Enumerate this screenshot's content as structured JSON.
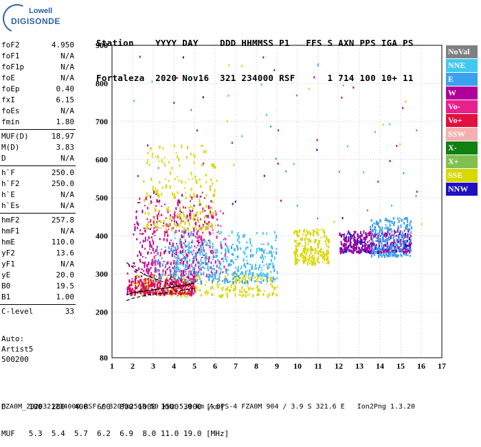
{
  "logo": {
    "brand": "Lowell",
    "product": "DIGISONDE"
  },
  "header": {
    "line1": "Station    YYYY DAY    DDD HHMMSS P1   FFS S AXN PPS IGA PS",
    "line2": "Fortaleza  2020 Nov16  321 234000 RSF      1 714 100 10+ 11"
  },
  "params": [
    [
      {
        "k": "foF2",
        "v": "4.950"
      },
      {
        "k": "foF1",
        "v": "N/A"
      },
      {
        "k": "foF1p",
        "v": "N/A"
      },
      {
        "k": "foE",
        "v": "N/A"
      },
      {
        "k": "foEp",
        "v": "0.40"
      },
      {
        "k": "fxI",
        "v": "6.15"
      },
      {
        "k": "foEs",
        "v": "N/A"
      },
      {
        "k": "fmin",
        "v": "1.80"
      }
    ],
    [
      {
        "k": "MUF(D)",
        "v": "18.97"
      },
      {
        "k": "M(D)",
        "v": "3.83"
      },
      {
        "k": "D",
        "v": "N/A"
      }
    ],
    [
      {
        "k": "h`F",
        "v": "250.0"
      },
      {
        "k": "h`F2",
        "v": "250.0"
      },
      {
        "k": "h`E",
        "v": "N/A"
      },
      {
        "k": "h`Es",
        "v": "N/A"
      }
    ],
    [
      {
        "k": "hmF2",
        "v": "257.8"
      },
      {
        "k": "hmF1",
        "v": "N/A"
      },
      {
        "k": "hmE",
        "v": "110.0"
      },
      {
        "k": "yF2",
        "v": "13.6"
      },
      {
        "k": "yF1",
        "v": "N/A"
      },
      {
        "k": "yE",
        "v": "20.0"
      },
      {
        "k": "B0",
        "v": "19.5"
      },
      {
        "k": "B1",
        "v": "1.00"
      }
    ],
    [
      {
        "k": "C-level",
        "v": "33"
      }
    ]
  ],
  "auto": {
    "l1": "Auto:",
    "l2": "Artist5",
    "l3": "500200"
  },
  "legend": [
    {
      "label": "NoVal",
      "color": "#808080"
    },
    {
      "label": "NNE",
      "color": "#40c8f0"
    },
    {
      "label": "E",
      "color": "#3aa0ef"
    },
    {
      "label": "W",
      "color": "#b0009a"
    },
    {
      "label": "Vo-",
      "color": "#e8208c"
    },
    {
      "label": "Vo+",
      "color": "#e01040"
    },
    {
      "label": "SSW",
      "color": "#f4b0b0"
    },
    {
      "label": "X-",
      "color": "#108010"
    },
    {
      "label": "X+",
      "color": "#80c050"
    },
    {
      "label": "SSE",
      "color": "#d8d800"
    },
    {
      "label": "NNW",
      "color": "#2010c0"
    }
  ],
  "dtable": {
    "line1": "D     100  200  400  600  800 1000 1500 3000 [km]",
    "line2": "MUF   5.3  5.4  5.7  6.2  6.9  8.0 11.0 19.0 [MHz]"
  },
  "footer": "FZA0M_2020321234000.RSF / 320fx256h 50 kHz 5.0 km / DPS-4 FZA0M 904 / 3.9 S 321.6 E   Ion2Png 1.3.20",
  "chart_data": {
    "type": "scatter",
    "title": "",
    "xlabel": "",
    "ylabel": "",
    "xlim": [
      1,
      17
    ],
    "ylim": [
      80,
      900
    ],
    "x_ticks": [
      1,
      2,
      3,
      4,
      5,
      6,
      7,
      8,
      9,
      10,
      11,
      12,
      13,
      14,
      15,
      16,
      17
    ],
    "y_ticks": [
      80,
      200,
      300,
      400,
      500,
      600,
      700,
      800,
      900
    ],
    "grid": true,
    "legend_position": "right",
    "clusters": [
      {
        "x": [
          1.7,
          5.0
        ],
        "y": [
          250,
          330
        ],
        "color": "#b0009a"
      },
      {
        "x": [
          2.0,
          6.0
        ],
        "y": [
          330,
          520
        ],
        "color": "#b0009a"
      },
      {
        "x": [
          2.5,
          6.5
        ],
        "y": [
          300,
          480
        ],
        "color": "#e8208c"
      },
      {
        "x": [
          2.0,
          9.0
        ],
        "y": [
          245,
          300
        ],
        "color": "#d8d800"
      },
      {
        "x": [
          3.0,
          9.0
        ],
        "y": [
          280,
          380
        ],
        "color": "#3aa0ef"
      },
      {
        "x": [
          2.5,
          6.0
        ],
        "y": [
          420,
          640
        ],
        "color": "#d8d800"
      },
      {
        "x": [
          1.8,
          5.0
        ],
        "y": [
          250,
          290
        ],
        "color": "#e01040"
      },
      {
        "x": [
          4.0,
          9.0
        ],
        "y": [
          300,
          420
        ],
        "color": "#40c8f0"
      },
      {
        "x": [
          9.8,
          11.5
        ],
        "y": [
          330,
          420
        ],
        "color": "#d8d800"
      },
      {
        "x": [
          12.0,
          15.5
        ],
        "y": [
          360,
          410
        ],
        "color": "#2010c0"
      },
      {
        "x": [
          12.0,
          15.5
        ],
        "y": [
          360,
          420
        ],
        "color": "#b0009a"
      },
      {
        "x": [
          13.5,
          15.5
        ],
        "y": [
          350,
          450
        ],
        "color": "#3aa0ef"
      }
    ],
    "curves": [
      {
        "name": "dashed-trace-upper",
        "style": "dashed",
        "x": [
          1.7,
          2.2,
          2.7,
          3.2,
          3.7,
          4.2
        ],
        "y": [
          330,
          310,
          295,
          285,
          275,
          268
        ]
      },
      {
        "name": "solid-trace",
        "style": "solid",
        "x": [
          1.7,
          2.0,
          2.5,
          3.0,
          3.5,
          4.0,
          4.5,
          5.0
        ],
        "y": [
          245,
          250,
          255,
          258,
          262,
          266,
          270,
          276
        ]
      },
      {
        "name": "dashed-trace-lower",
        "style": "dashed",
        "x": [
          1.7,
          2.0,
          2.5,
          3.0,
          3.5,
          4.0,
          4.5,
          5.0
        ],
        "y": [
          230,
          236,
          242,
          247,
          250,
          254,
          258,
          262
        ]
      }
    ]
  }
}
